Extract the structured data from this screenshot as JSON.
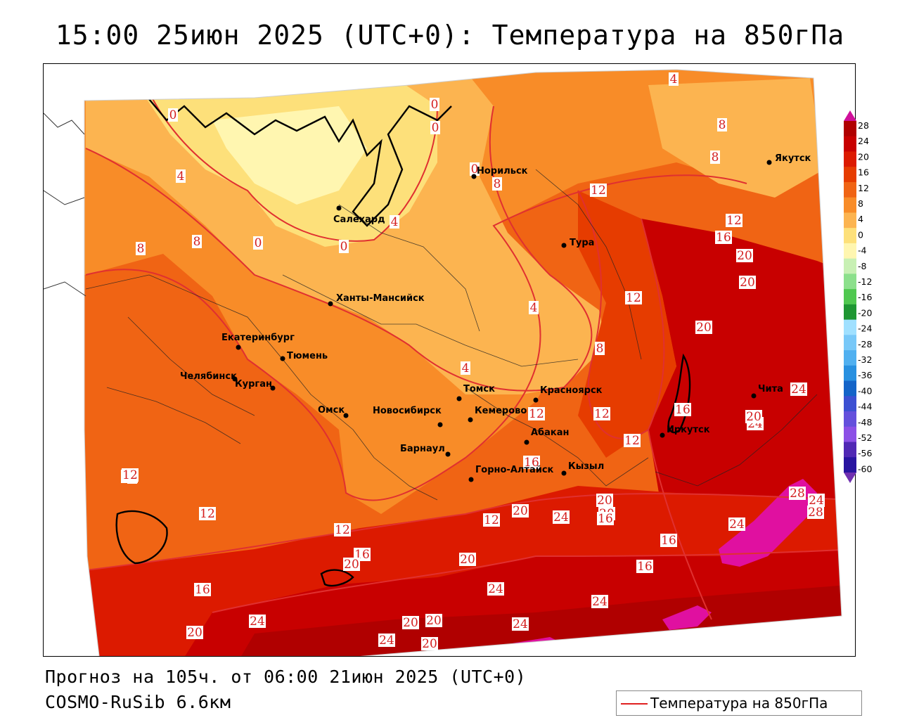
{
  "title": "15:00 25июн 2025 (UTC+0): Температура на 850гПа",
  "footer": {
    "forecast": "Прогноз на 105ч. от 06:00 21июн 2025 (UTC+0)",
    "model": "COSMO-RuSib 6.6км"
  },
  "legend": {
    "label": "Температура на 850гПа",
    "line_color": "#e02020"
  },
  "colorbar": {
    "levels": [
      "28",
      "24",
      "20",
      "16",
      "12",
      "8",
      "4",
      "0",
      "-4",
      "-8",
      "-12",
      "-16",
      "-20",
      "-24",
      "-28",
      "-32",
      "-36",
      "-40",
      "-44",
      "-48",
      "-52",
      "-56",
      "-60"
    ],
    "colors": [
      "#b00000",
      "#c80000",
      "#dc1a00",
      "#e63c00",
      "#f06414",
      "#f88c28",
      "#fcb450",
      "#fde07a",
      "#fff6b0",
      "#c8f0b4",
      "#8ce08c",
      "#50c850",
      "#1e9632",
      "#a0e0ff",
      "#78c8f8",
      "#50b0f0",
      "#2890e0",
      "#1464c8",
      "#3c50d2",
      "#6450dc",
      "#8c50e6",
      "#5028b4",
      "#2814a0"
    ]
  },
  "cities": [
    {
      "name": "Салехард"
    },
    {
      "name": "Норильск"
    },
    {
      "name": "Якутск"
    },
    {
      "name": "Тура"
    },
    {
      "name": "Ханты-Мансийск"
    },
    {
      "name": "Екатеринбург"
    },
    {
      "name": "Тюмень"
    },
    {
      "name": "Челябинск"
    },
    {
      "name": "Курган"
    },
    {
      "name": "Омск"
    },
    {
      "name": "Новосибирск"
    },
    {
      "name": "Томск"
    },
    {
      "name": "Кемерово"
    },
    {
      "name": "Красноярск"
    },
    {
      "name": "Барнаул"
    },
    {
      "name": "Абакан"
    },
    {
      "name": "Горно-Алтайск"
    },
    {
      "name": "Кызыл"
    },
    {
      "name": "Иркутск"
    },
    {
      "name": "Чита"
    }
  ],
  "isotherm_labels": [
    "0",
    "4",
    "0",
    "8",
    "8",
    "0",
    "4",
    "0",
    "8",
    "4",
    "0",
    "0",
    "8",
    "8",
    "4",
    "8",
    "12",
    "12",
    "16",
    "20",
    "20",
    "12",
    "20",
    "8",
    "4",
    "12",
    "12",
    "12",
    "16",
    "20",
    "12",
    "12",
    "16",
    "24",
    "24",
    "12",
    "12",
    "16",
    "20",
    "24",
    "20",
    "16",
    "16",
    "24",
    "28",
    "28",
    "12",
    "20",
    "20",
    "16",
    "24",
    "20",
    "24",
    "24",
    "20",
    "20",
    "20",
    "24",
    "24",
    "20",
    "24",
    "16"
  ]
}
